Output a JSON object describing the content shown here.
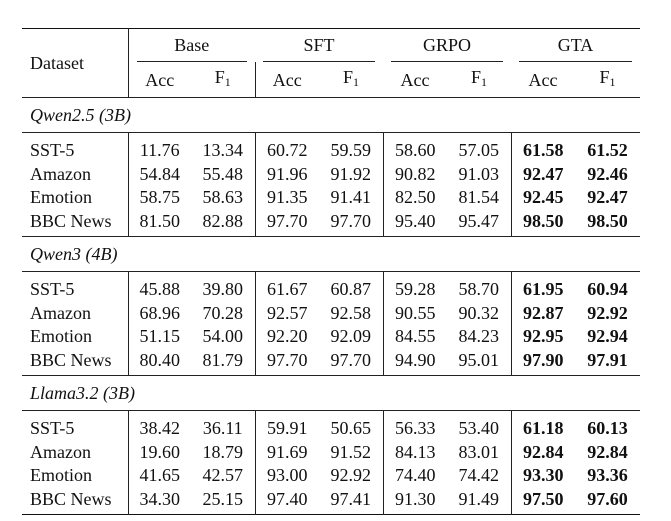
{
  "header": {
    "dataset_label": "Dataset",
    "groups": [
      "Base",
      "SFT",
      "GRPO",
      "GTA"
    ],
    "metric_acc": "Acc",
    "metric_f": "F",
    "metric_f_sub": "1"
  },
  "sections": [
    {
      "model": "Qwen2.5 (3B)",
      "rows": [
        {
          "dataset": "SST-5",
          "values": [
            "11.76",
            "13.34",
            "60.72",
            "59.59",
            "58.60",
            "57.05",
            "61.58",
            "61.52"
          ]
        },
        {
          "dataset": "Amazon",
          "values": [
            "54.84",
            "55.48",
            "91.96",
            "91.92",
            "90.82",
            "91.03",
            "92.47",
            "92.46"
          ]
        },
        {
          "dataset": "Emotion",
          "values": [
            "58.75",
            "58.63",
            "91.35",
            "91.41",
            "82.50",
            "81.54",
            "92.45",
            "92.47"
          ]
        },
        {
          "dataset": "BBC News",
          "values": [
            "81.50",
            "82.88",
            "97.70",
            "97.70",
            "95.40",
            "95.47",
            "98.50",
            "98.50"
          ]
        }
      ]
    },
    {
      "model": "Qwen3 (4B)",
      "rows": [
        {
          "dataset": "SST-5",
          "values": [
            "45.88",
            "39.80",
            "61.67",
            "60.87",
            "59.28",
            "58.70",
            "61.95",
            "60.94"
          ]
        },
        {
          "dataset": "Amazon",
          "values": [
            "68.96",
            "70.28",
            "92.57",
            "92.58",
            "90.55",
            "90.32",
            "92.87",
            "92.92"
          ]
        },
        {
          "dataset": "Emotion",
          "values": [
            "51.15",
            "54.00",
            "92.20",
            "92.09",
            "84.55",
            "84.23",
            "92.95",
            "92.94"
          ]
        },
        {
          "dataset": "BBC News",
          "values": [
            "80.40",
            "81.79",
            "97.70",
            "97.70",
            "94.90",
            "95.01",
            "97.90",
            "97.91"
          ]
        }
      ]
    },
    {
      "model": "Llama3.2 (3B)",
      "rows": [
        {
          "dataset": "SST-5",
          "values": [
            "38.42",
            "36.11",
            "59.91",
            "50.65",
            "56.33",
            "53.40",
            "61.18",
            "60.13"
          ]
        },
        {
          "dataset": "Amazon",
          "values": [
            "19.60",
            "18.79",
            "91.69",
            "91.52",
            "84.13",
            "83.01",
            "92.84",
            "92.84"
          ]
        },
        {
          "dataset": "Emotion",
          "values": [
            "41.65",
            "42.57",
            "93.00",
            "92.92",
            "74.40",
            "74.42",
            "93.30",
            "93.36"
          ]
        },
        {
          "dataset": "BBC News",
          "values": [
            "34.30",
            "25.15",
            "97.40",
            "97.41",
            "91.30",
            "91.49",
            "97.50",
            "97.60"
          ]
        }
      ]
    }
  ]
}
